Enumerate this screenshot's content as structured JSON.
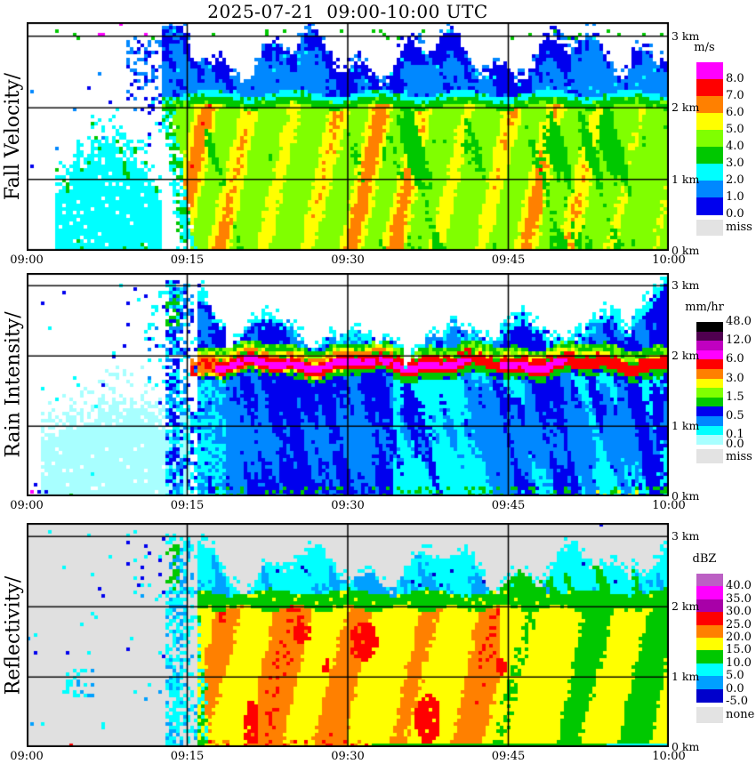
{
  "chart_data": {
    "type": "heatmap",
    "title": "2025-07-21  09:00-10:00 UTC",
    "x_axis": {
      "ticks": [
        "09:00",
        "09:15",
        "09:30",
        "09:45",
        "10:00"
      ],
      "start_min": 0,
      "end_min": 60,
      "gridlines_min": [
        15,
        30,
        45
      ]
    },
    "y_axis": {
      "ticks": [
        "3 km",
        "2 km",
        "1 km",
        "0 km"
      ],
      "unit": "km",
      "range_km": [
        0,
        3.2
      ],
      "gridlines_km": [
        1,
        2,
        3
      ]
    },
    "panels": [
      {
        "id": "fall_velocity",
        "ylabel": "Fall Velocity/",
        "units": "m/s",
        "background": "#FFFFFF",
        "legend": {
          "title": "m/s",
          "blocks": [
            {
              "color": "#FF00FF",
              "label": "8.0"
            },
            {
              "color": "#FF0000",
              "label": "7.0"
            },
            {
              "color": "#FF8000",
              "label": "6.0"
            },
            {
              "color": "#FFFF00",
              "label": "5.0"
            },
            {
              "color": "#80FF00",
              "label": "4.0"
            },
            {
              "color": "#00C800",
              "label": "3.0"
            },
            {
              "color": "#00FFFF",
              "label": "2.0"
            },
            {
              "color": "#0088FF",
              "label": "1.0"
            },
            {
              "color": "#0000EE",
              "label": "0.0"
            }
          ],
          "missing": {
            "color": "#E3E3E3",
            "label": "miss"
          }
        },
        "features": {
          "onset_min": 12.6,
          "rain_onset_min": 13.7,
          "drizzle": {
            "t_start": 2.5,
            "peak_top_km": 1.85,
            "colors": [
              "#00FFFF",
              "#00C800"
            ]
          },
          "echo_top_km": {
            "base": 2.72,
            "amp": 0.26,
            "initial_plume_max": 3.16
          },
          "melting_band": {
            "cyan_top_km": 2.21,
            "green_top_km": 2.13,
            "rain_top_km": 2.03
          },
          "snow_layer_colors": [
            "#0088FF",
            "#0000EE"
          ],
          "rain_colors": {
            "base": "#80FF00",
            "streaks": [
              "#FFFF00",
              "#FF8000"
            ],
            "patches": "#00C800",
            "cores": "#FF0000"
          }
        }
      },
      {
        "id": "rain_intensity",
        "ylabel": "Rain Intensity/",
        "units": "mm/hr",
        "background": "#FFFFFF",
        "legend": {
          "title": "mm/hr",
          "top_label": "48.0",
          "blocks": [
            {
              "color": "#000000",
              "label": null
            },
            {
              "color": "#500050",
              "label": "12.0"
            },
            {
              "color": "#C000C0",
              "label": null
            },
            {
              "color": "#FF00FF",
              "label": "6.0"
            },
            {
              "color": "#FF0000",
              "label": null
            },
            {
              "color": "#FF8000",
              "label": "3.0"
            },
            {
              "color": "#FFFF00",
              "label": null
            },
            {
              "color": "#80FF00",
              "label": "1.5"
            },
            {
              "color": "#00C800",
              "label": null
            },
            {
              "color": "#0000EE",
              "label": "0.5"
            },
            {
              "color": "#0088FF",
              "label": null
            },
            {
              "color": "#00FFFF",
              "label": "0.1"
            },
            {
              "color": "#A8FFFF",
              "label": "0.0"
            }
          ],
          "missing": {
            "color": "#E3E3E3",
            "label": "miss"
          }
        },
        "features": {
          "pale_region": {
            "t_range": [
              1.2,
              16.0
            ],
            "top_km": 1.3,
            "color": "#A8FFFF"
          },
          "plume_t": [
            13.0,
            16.0
          ],
          "band_center_km": 1.88,
          "magenta_core_t": [
            [
              17.6,
              41.5
            ],
            [
              44.0,
              50.5
            ]
          ],
          "band_layers": [
            "#FF00FF",
            "#FF0000",
            "#FF8000",
            "#FFFF00",
            "#80FF00",
            "#00C800"
          ],
          "upper_colors": [
            "#0000EE",
            "#0088FF",
            "#00FFFF"
          ],
          "lower_colors": [
            "#0088FF",
            "#0000EE",
            "#00FFFF",
            "#00C800"
          ],
          "echo_gap_t": [
            [
              29,
              33
            ],
            [
              35,
              39
            ]
          ],
          "right_spike_t": 56.5
        }
      },
      {
        "id": "reflectivity",
        "ylabel": "Reflectivity/",
        "units": "dBZ",
        "background": "#E0E0E0",
        "legend": {
          "title": "dBZ",
          "blocks": [
            {
              "color": "#BC60C4",
              "label": "40.0"
            },
            {
              "color": "#FF00FF",
              "label": "35.0"
            },
            {
              "color": "#A800A8",
              "label": "30.0"
            },
            {
              "color": "#FF0000",
              "label": "25.0"
            },
            {
              "color": "#FF8000",
              "label": "20.0"
            },
            {
              "color": "#FFFF00",
              "label": "15.0"
            },
            {
              "color": "#00C800",
              "label": "10.0"
            },
            {
              "color": "#00FFFF",
              "label": "5.0"
            },
            {
              "color": "#00A0FF",
              "label": "0.0"
            },
            {
              "color": "#0000CC",
              "label": "-5.0"
            }
          ],
          "missing": {
            "color": "#E3E3E3",
            "label": "none"
          }
        },
        "features": {
          "plume_t": [
            13.0,
            15.8
          ],
          "band": {
            "green_top_km": 2.2,
            "green_bottom_km": 1.97
          },
          "cyan_layer_colors": [
            "#00FFFF",
            "#00A0FF"
          ],
          "green_mass_t": [
            44,
            58.5
          ],
          "orange_region_t_max": 44,
          "rain_colors": {
            "base": "#FFFF00",
            "streak": "#FF8000",
            "cores": "#FF0000",
            "right_patches": "#00C800"
          },
          "red_cores": [
            [
              25.6,
              1.62,
              0.9,
              0.14
            ],
            [
              31.4,
              1.5,
              1.3,
              0.28
            ],
            [
              20.9,
              0.35,
              0.8,
              0.3
            ],
            [
              37.4,
              0.4,
              1.2,
              0.35
            ],
            [
              18.3,
              1.85,
              0.4,
              0.08
            ],
            [
              44.2,
              1.15,
              0.5,
              0.12
            ],
            [
              27.9,
              1.15,
              0.35,
              0.1
            ]
          ],
          "bottom_strip": {
            "green_t": 32,
            "cyan_t": 54
          }
        }
      }
    ]
  }
}
